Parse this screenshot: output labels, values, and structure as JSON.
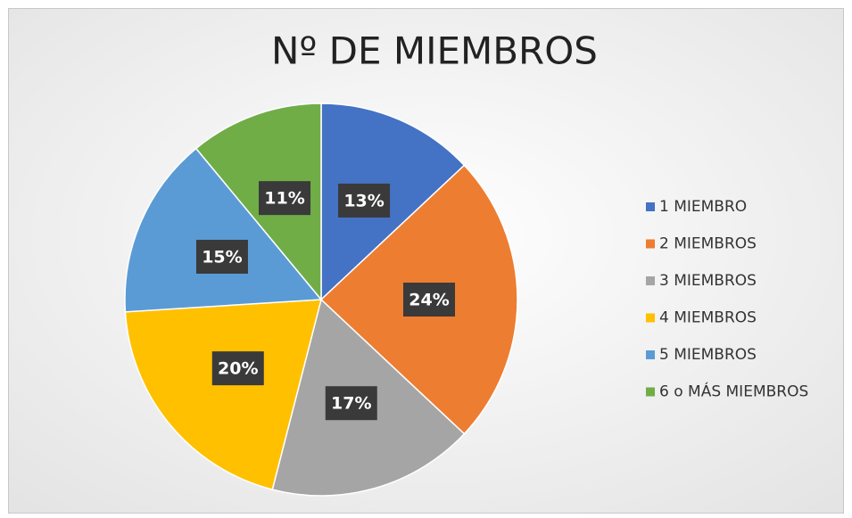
{
  "chart_data": {
    "type": "pie",
    "title": "Nº DE MIEMBROS",
    "categories": [
      "1 MIEMBRO",
      "2 MIEMBROS",
      "3 MIEMBROS",
      "4 MIEMBROS",
      "5 MIEMBROS",
      "6 o MÁS MIEMBROS"
    ],
    "values": [
      13,
      24,
      17,
      20,
      15,
      11
    ],
    "value_labels": [
      "13%",
      "24%",
      "17%",
      "20%",
      "15%",
      "11%"
    ],
    "colors": [
      "#4472c4",
      "#ed7d31",
      "#a5a5a5",
      "#ffc000",
      "#5b9bd5",
      "#70ad47"
    ],
    "legend": "right"
  }
}
